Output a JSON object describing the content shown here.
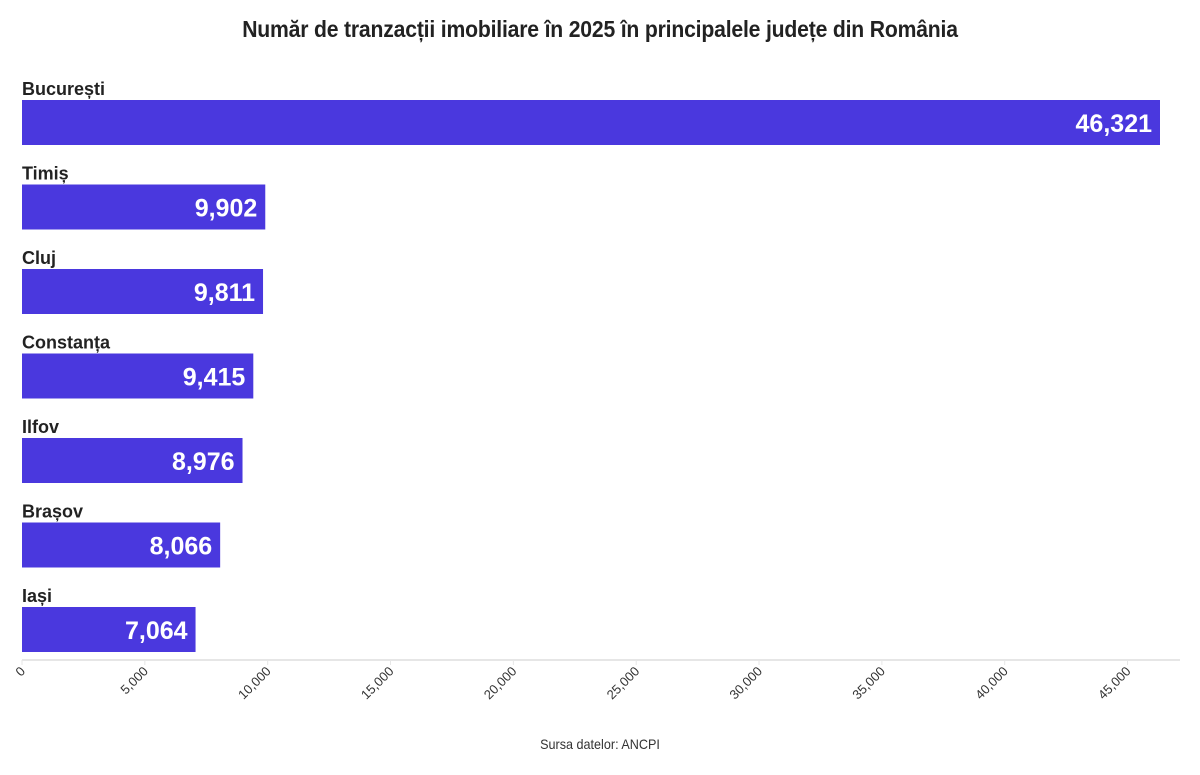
{
  "chart_data": {
    "type": "bar",
    "orientation": "horizontal",
    "title": "Număr de tranzacții imobiliare în 2025 în principalele județe din România",
    "categories": [
      "București",
      "Timiș",
      "Cluj",
      "Constanța",
      "Ilfov",
      "Brașov",
      "Iași"
    ],
    "values": [
      46321,
      9902,
      9811,
      9415,
      8976,
      8066,
      7064
    ],
    "value_labels": [
      "46,321",
      "9,902",
      "9,811",
      "9,415",
      "8,976",
      "8,066",
      "7,064"
    ],
    "xlim": [
      0,
      46321
    ],
    "x_ticks": [
      0,
      5000,
      10000,
      15000,
      20000,
      25000,
      30000,
      35000,
      40000,
      45000
    ],
    "x_tick_labels": [
      "0",
      "5,000",
      "10,000",
      "15,000",
      "20,000",
      "25,000",
      "30,000",
      "35,000",
      "40,000",
      "45,000"
    ],
    "grid": false,
    "bar_color": "#4a38de",
    "source": "Sursa datelor: ANCPI"
  }
}
